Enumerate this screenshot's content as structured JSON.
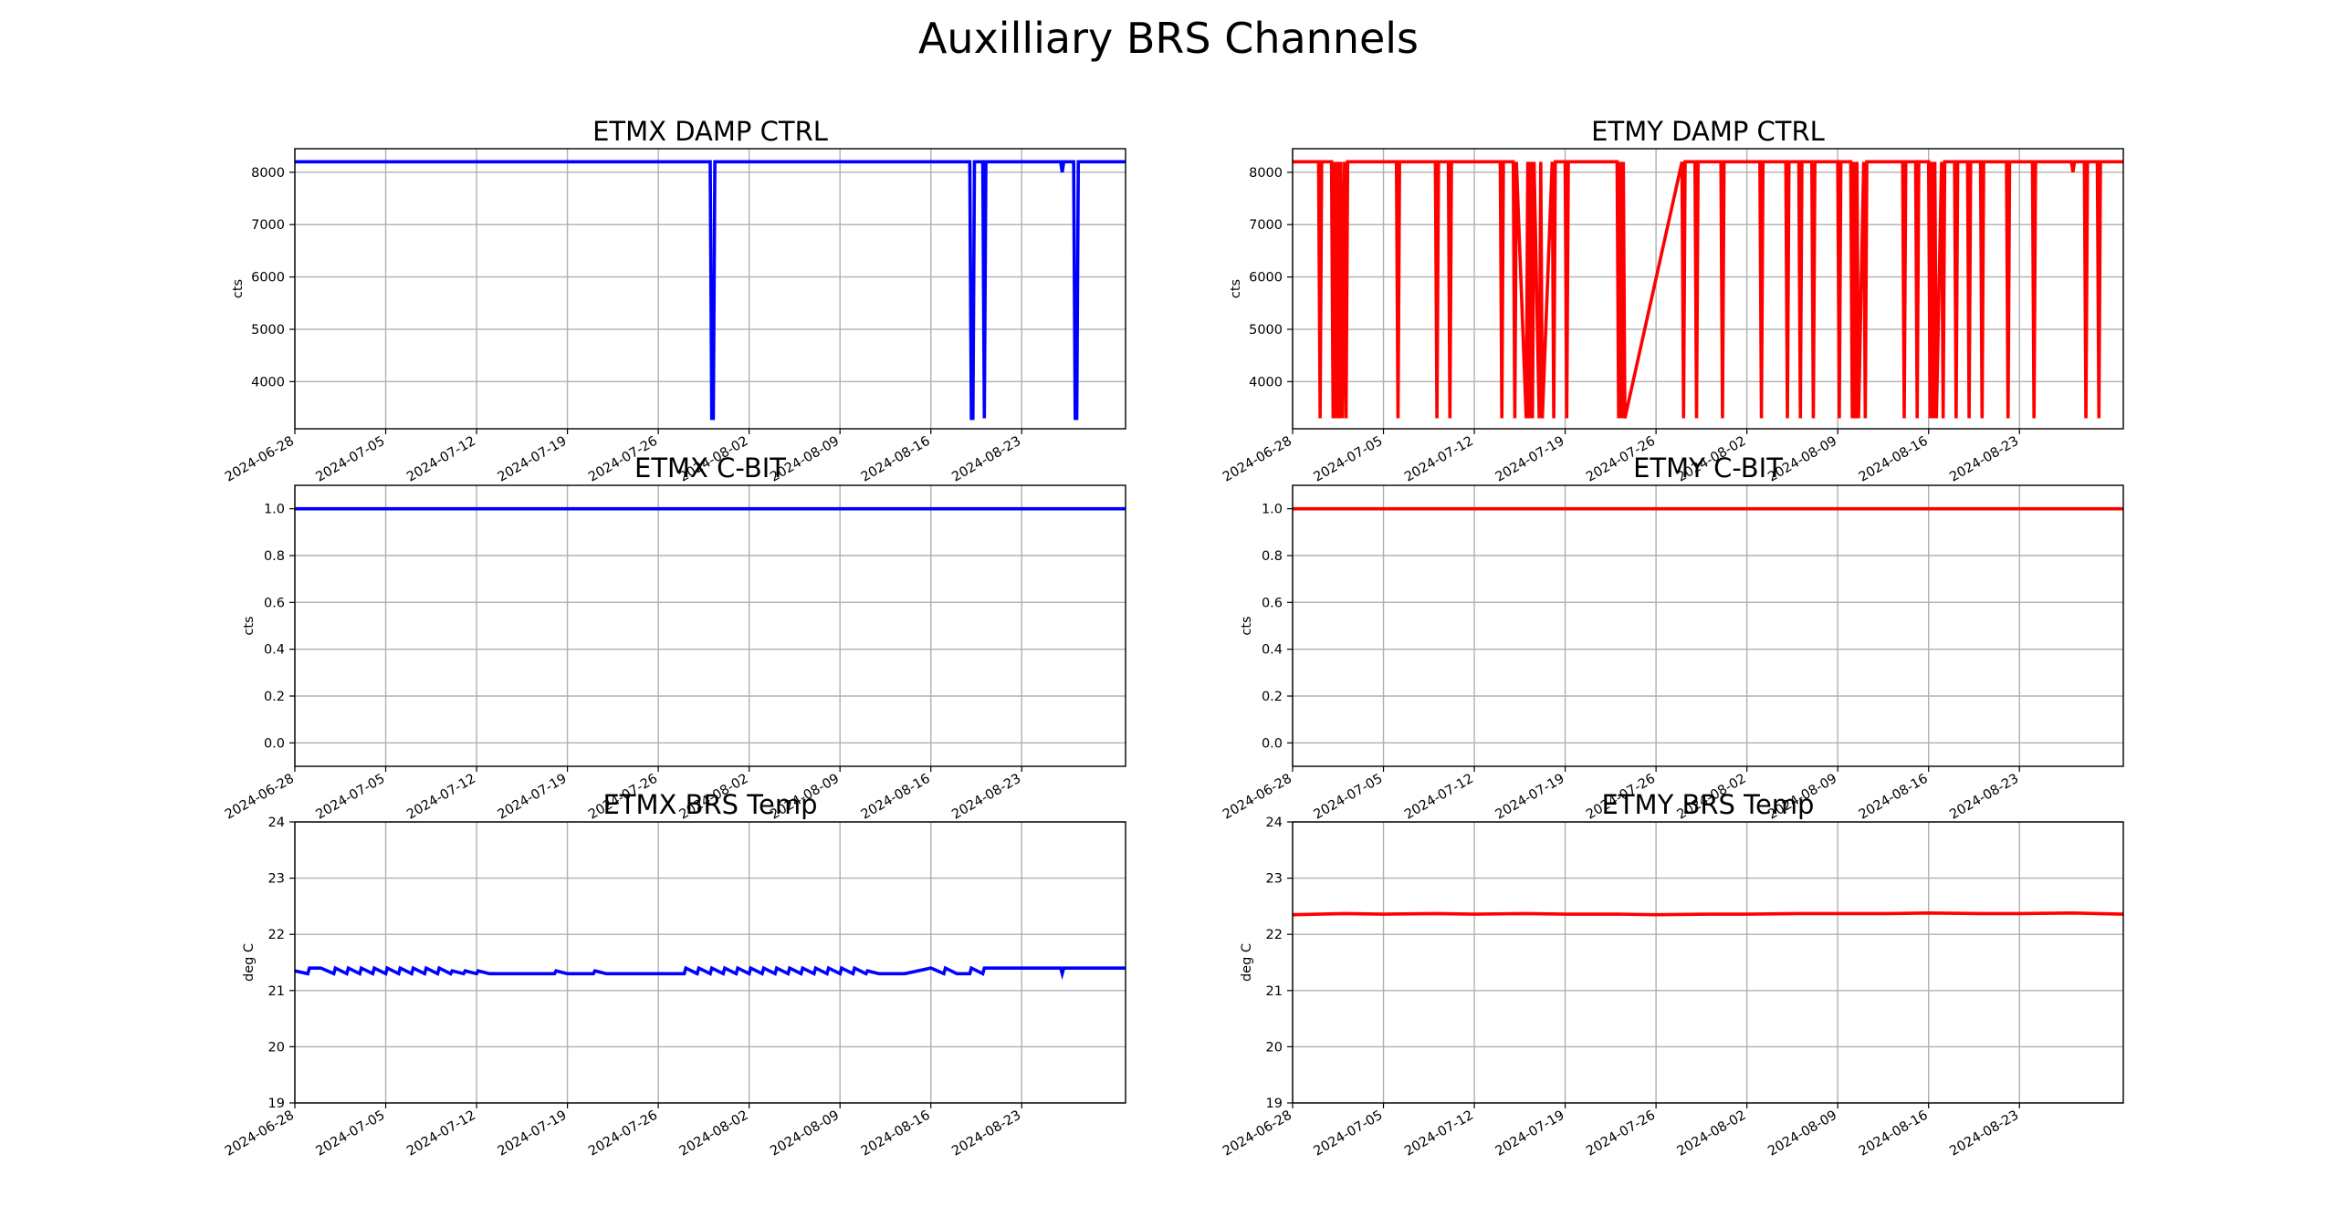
{
  "figure": {
    "title": "Auxilliary BRS Channels"
  },
  "colors": {
    "etmx": "#0000ff",
    "etmy": "#ff0000"
  },
  "chart_data": [
    {
      "type": "line",
      "title": "ETMX DAMP CTRL",
      "ylabel": "cts",
      "xlim": [
        "2024-06-28",
        "2024-08-31"
      ],
      "ylim": [
        3100,
        8450
      ],
      "yticks": [
        "4000",
        "5000",
        "6000",
        "7000",
        "8000"
      ],
      "xticks": [
        "2024-06-28",
        "2024-07-05",
        "2024-07-12",
        "2024-07-19",
        "2024-07-26",
        "2024-08-02",
        "2024-08-09",
        "2024-08-16",
        "2024-08-23"
      ],
      "grid": true,
      "series": [
        {
          "color": "#0000ff",
          "x": [
            "2024-06-28",
            "2024-07-30",
            "2024-07-30",
            "2024-07-30",
            "2024-07-30",
            "2024-08-19",
            "2024-08-19",
            "2024-08-19",
            "2024-08-19",
            "2024-08-20",
            "2024-08-20",
            "2024-08-20",
            "2024-08-26",
            "2024-08-26",
            "2024-08-26",
            "2024-08-27",
            "2024-08-27",
            "2024-08-27",
            "2024-08-27",
            "2024-08-31"
          ],
          "values": [
            8200,
            8200,
            3300,
            3300,
            8200,
            8200,
            3300,
            3300,
            8200,
            8200,
            3300,
            8200,
            8200,
            8000,
            8200,
            8200,
            3300,
            3300,
            8200,
            8200
          ]
        }
      ]
    },
    {
      "type": "line",
      "title": "ETMY DAMP CTRL",
      "ylabel": "cts",
      "xlim": [
        "2024-06-28",
        "2024-08-31"
      ],
      "ylim": [
        3100,
        8450
      ],
      "yticks": [
        "4000",
        "5000",
        "6000",
        "7000",
        "8000"
      ],
      "xticks": [
        "2024-06-28",
        "2024-07-05",
        "2024-07-12",
        "2024-07-19",
        "2024-07-26",
        "2024-08-02",
        "2024-08-09",
        "2024-08-16",
        "2024-08-23"
      ],
      "grid": true,
      "series": [
        {
          "color": "#ff0000",
          "x": [
            "2024-06-28",
            "2024-06-30",
            "2024-06-30",
            "2024-06-30",
            "2024-06-30",
            "2024-07-01",
            "2024-07-01",
            "2024-07-01",
            "2024-07-01",
            "2024-07-01",
            "2024-07-01",
            "2024-07-01",
            "2024-07-01",
            "2024-07-02",
            "2024-07-02",
            "2024-07-02",
            "2024-07-06",
            "2024-07-06",
            "2024-07-06",
            "2024-07-09",
            "2024-07-09",
            "2024-07-09",
            "2024-07-10",
            "2024-07-10",
            "2024-07-10",
            "2024-07-14",
            "2024-07-14",
            "2024-07-14",
            "2024-07-15",
            "2024-07-15",
            "2024-07-15",
            "2024-07-16",
            "2024-07-16",
            "2024-07-16",
            "2024-07-16",
            "2024-07-16",
            "2024-07-16",
            "2024-07-17",
            "2024-07-17",
            "2024-07-17",
            "2024-07-18",
            "2024-07-18",
            "2024-07-18",
            "2024-07-19",
            "2024-07-19",
            "2024-07-19",
            "2024-07-23",
            "2024-07-23",
            "2024-07-23",
            "2024-07-23",
            "2024-07-23",
            "2024-07-23",
            "2024-07-28",
            "2024-07-28",
            "2024-07-28",
            "2024-07-29",
            "2024-07-29",
            "2024-07-29",
            "2024-07-31",
            "2024-07-31",
            "2024-07-31",
            "2024-08-03",
            "2024-08-03",
            "2024-08-03",
            "2024-08-05",
            "2024-08-05",
            "2024-08-05",
            "2024-08-06",
            "2024-08-06",
            "2024-08-06",
            "2024-08-07",
            "2024-08-07",
            "2024-08-07",
            "2024-08-09",
            "2024-08-09",
            "2024-08-09",
            "2024-08-10",
            "2024-08-10",
            "2024-08-10",
            "2024-08-10",
            "2024-08-10",
            "2024-08-10",
            "2024-08-11",
            "2024-08-11",
            "2024-08-11",
            "2024-08-14",
            "2024-08-14",
            "2024-08-14",
            "2024-08-15",
            "2024-08-15",
            "2024-08-15",
            "2024-08-16",
            "2024-08-16",
            "2024-08-16",
            "2024-08-16",
            "2024-08-16",
            "2024-08-16",
            "2024-08-17",
            "2024-08-17",
            "2024-08-17",
            "2024-08-18",
            "2024-08-18",
            "2024-08-18",
            "2024-08-19",
            "2024-08-19",
            "2024-08-19",
            "2024-08-20",
            "2024-08-20",
            "2024-08-20",
            "2024-08-22",
            "2024-08-22",
            "2024-08-22",
            "2024-08-24",
            "2024-08-24",
            "2024-08-24",
            "2024-08-27",
            "2024-08-27",
            "2024-08-27",
            "2024-08-28",
            "2024-08-28",
            "2024-08-28",
            "2024-08-29",
            "2024-08-29",
            "2024-08-29",
            "2024-08-31"
          ],
          "values": [
            8200,
            8200,
            3300,
            8200,
            8200,
            8200,
            3300,
            8200,
            3300,
            8200,
            3300,
            8200,
            3300,
            8200,
            3300,
            8200,
            8200,
            3300,
            8200,
            8200,
            3300,
            8200,
            8200,
            3300,
            8200,
            8200,
            3300,
            8200,
            8200,
            3300,
            8200,
            3300,
            8200,
            3300,
            8200,
            3300,
            8200,
            3300,
            8200,
            3300,
            8200,
            3300,
            8200,
            8200,
            3300,
            8200,
            8200,
            3300,
            8200,
            3300,
            8200,
            3300,
            8200,
            3300,
            8200,
            8200,
            3300,
            8200,
            8200,
            3300,
            8200,
            8200,
            3300,
            8200,
            8200,
            3300,
            8200,
            8200,
            3300,
            8200,
            8200,
            3300,
            8200,
            8200,
            3300,
            8200,
            8200,
            3300,
            8200,
            3300,
            8200,
            3300,
            8200,
            3300,
            8200,
            8200,
            3300,
            8200,
            8200,
            3300,
            8200,
            8200,
            3300,
            8200,
            3300,
            8200,
            3300,
            8200,
            3300,
            8200,
            8200,
            3300,
            8200,
            8200,
            3300,
            8200,
            8200,
            3300,
            8200,
            8200,
            3300,
            8200,
            8200,
            3300,
            8200,
            8200,
            8000,
            8200,
            8200,
            3300,
            8200,
            8200,
            3300,
            8200,
            8200
          ]
        }
      ]
    },
    {
      "type": "line",
      "title": "ETMX C-BIT",
      "ylabel": "cts",
      "xlim": [
        "2024-06-28",
        "2024-08-31"
      ],
      "ylim": [
        -0.1,
        1.1
      ],
      "yticks": [
        "0.0",
        "0.2",
        "0.4",
        "0.6",
        "0.8",
        "1.0"
      ],
      "xticks": [
        "2024-06-28",
        "2024-07-05",
        "2024-07-12",
        "2024-07-19",
        "2024-07-26",
        "2024-08-02",
        "2024-08-09",
        "2024-08-16",
        "2024-08-23"
      ],
      "grid": true,
      "series": [
        {
          "color": "#0000ff",
          "x": [
            "2024-06-28",
            "2024-08-31"
          ],
          "values": [
            1.0,
            1.0
          ]
        }
      ]
    },
    {
      "type": "line",
      "title": "ETMY C-BIT",
      "ylabel": "cts",
      "xlim": [
        "2024-06-28",
        "2024-08-31"
      ],
      "ylim": [
        -0.1,
        1.1
      ],
      "yticks": [
        "0.0",
        "0.2",
        "0.4",
        "0.6",
        "0.8",
        "1.0"
      ],
      "xticks": [
        "2024-06-28",
        "2024-07-05",
        "2024-07-12",
        "2024-07-19",
        "2024-07-26",
        "2024-08-02",
        "2024-08-09",
        "2024-08-16",
        "2024-08-23"
      ],
      "grid": true,
      "series": [
        {
          "color": "#ff0000",
          "x": [
            "2024-06-28",
            "2024-08-31"
          ],
          "values": [
            1.0,
            1.0
          ]
        }
      ]
    },
    {
      "type": "line",
      "title": "ETMX BRS Temp",
      "ylabel": "deg C",
      "xlim": [
        "2024-06-28",
        "2024-08-31"
      ],
      "ylim": [
        19,
        24
      ],
      "yticks": [
        "19",
        "20",
        "21",
        "22",
        "23",
        "24"
      ],
      "xticks": [
        "2024-06-28",
        "2024-07-05",
        "2024-07-12",
        "2024-07-19",
        "2024-07-26",
        "2024-08-02",
        "2024-08-09",
        "2024-08-16",
        "2024-08-23"
      ],
      "grid": true,
      "series": [
        {
          "color": "#0000ff",
          "x": [
            "2024-06-28",
            "2024-06-29",
            "2024-06-29",
            "2024-06-30",
            "2024-07-01",
            "2024-07-01",
            "2024-07-02",
            "2024-07-02",
            "2024-07-03",
            "2024-07-03",
            "2024-07-04",
            "2024-07-04",
            "2024-07-05",
            "2024-07-05",
            "2024-07-06",
            "2024-07-06",
            "2024-07-07",
            "2024-07-07",
            "2024-07-08",
            "2024-07-08",
            "2024-07-09",
            "2024-07-09",
            "2024-07-10",
            "2024-07-10",
            "2024-07-11",
            "2024-07-11",
            "2024-07-12",
            "2024-07-12",
            "2024-07-13",
            "2024-07-14",
            "2024-07-18",
            "2024-07-18",
            "2024-07-19",
            "2024-07-21",
            "2024-07-21",
            "2024-07-22",
            "2024-07-23",
            "2024-07-23",
            "2024-07-24",
            "2024-07-28",
            "2024-07-28",
            "2024-07-29",
            "2024-07-29",
            "2024-07-30",
            "2024-07-30",
            "2024-07-31",
            "2024-07-31",
            "2024-08-01",
            "2024-08-01",
            "2024-08-02",
            "2024-08-02",
            "2024-08-03",
            "2024-08-03",
            "2024-08-04",
            "2024-08-04",
            "2024-08-05",
            "2024-08-05",
            "2024-08-06",
            "2024-08-06",
            "2024-08-07",
            "2024-08-07",
            "2024-08-08",
            "2024-08-08",
            "2024-08-09",
            "2024-08-09",
            "2024-08-10",
            "2024-08-10",
            "2024-08-11",
            "2024-08-11",
            "2024-08-12",
            "2024-08-13",
            "2024-08-14",
            "2024-08-16",
            "2024-08-17",
            "2024-08-17",
            "2024-08-18",
            "2024-08-19",
            "2024-08-19",
            "2024-08-20",
            "2024-08-20",
            "2024-08-21",
            "2024-08-22",
            "2024-08-22",
            "2024-08-23",
            "2024-08-25",
            "2024-08-26",
            "2024-08-26",
            "2024-08-26",
            "2024-08-31"
          ],
          "values": [
            21.35,
            21.3,
            21.4,
            21.4,
            21.3,
            21.4,
            21.3,
            21.4,
            21.3,
            21.4,
            21.3,
            21.4,
            21.3,
            21.4,
            21.3,
            21.4,
            21.3,
            21.4,
            21.3,
            21.4,
            21.3,
            21.4,
            21.3,
            21.35,
            21.3,
            21.35,
            21.3,
            21.35,
            21.3,
            21.3,
            21.3,
            21.35,
            21.3,
            21.3,
            21.35,
            21.3,
            21.3,
            21.3,
            21.3,
            21.3,
            21.4,
            21.3,
            21.4,
            21.3,
            21.4,
            21.3,
            21.4,
            21.3,
            21.4,
            21.3,
            21.4,
            21.3,
            21.4,
            21.3,
            21.4,
            21.3,
            21.4,
            21.3,
            21.4,
            21.3,
            21.4,
            21.3,
            21.4,
            21.3,
            21.4,
            21.3,
            21.4,
            21.3,
            21.35,
            21.3,
            21.3,
            21.3,
            21.4,
            21.3,
            21.4,
            21.3,
            21.3,
            21.4,
            21.3,
            21.4,
            21.4,
            21.4,
            21.4,
            21.4,
            21.4,
            21.4,
            21.3,
            21.4,
            21.4
          ]
        }
      ]
    },
    {
      "type": "line",
      "title": "ETMY BRS Temp",
      "ylabel": "deg C",
      "xlim": [
        "2024-06-28",
        "2024-08-31"
      ],
      "ylim": [
        19,
        24
      ],
      "yticks": [
        "19",
        "20",
        "21",
        "22",
        "23",
        "24"
      ],
      "xticks": [
        "2024-06-28",
        "2024-07-05",
        "2024-07-12",
        "2024-07-19",
        "2024-07-26",
        "2024-08-02",
        "2024-08-09",
        "2024-08-16",
        "2024-08-23"
      ],
      "grid": true,
      "series": [
        {
          "color": "#ff0000",
          "x": [
            "2024-06-28",
            "2024-07-02",
            "2024-07-05",
            "2024-07-09",
            "2024-07-12",
            "2024-07-16",
            "2024-07-19",
            "2024-07-23",
            "2024-07-26",
            "2024-07-30",
            "2024-08-02",
            "2024-08-06",
            "2024-08-09",
            "2024-08-13",
            "2024-08-16",
            "2024-08-20",
            "2024-08-23",
            "2024-08-27",
            "2024-08-31"
          ],
          "values": [
            22.35,
            22.37,
            22.36,
            22.37,
            22.36,
            22.37,
            22.36,
            22.36,
            22.35,
            22.36,
            22.36,
            22.37,
            22.37,
            22.37,
            22.38,
            22.37,
            22.37,
            22.38,
            22.36
          ]
        }
      ]
    }
  ]
}
